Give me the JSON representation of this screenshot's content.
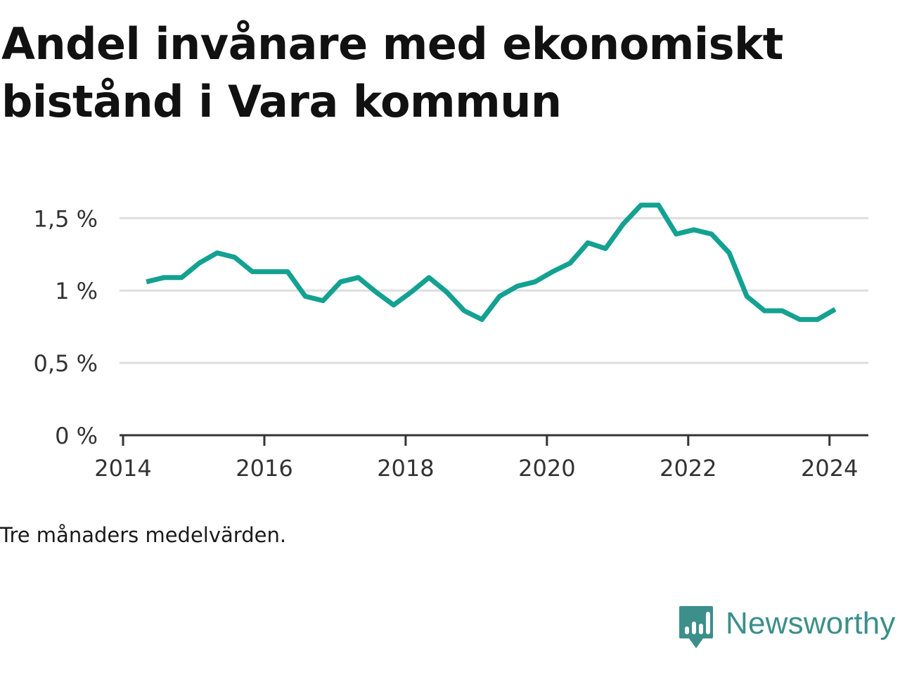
{
  "title": "Andel invånare med ekonomiskt bistånd i Vara kommun",
  "note": "Tre månaders medelvärden.",
  "brand": {
    "name": "Newsworthy",
    "icon": "bar-chart-speech-bubble-icon",
    "color": "#3c8f8a"
  },
  "chart_data": {
    "type": "line",
    "title": "Andel invånare med ekonomiskt bistånd i Vara kommun",
    "xlabel": "",
    "ylabel": "",
    "xlim": [
      2013.95,
      2024.55
    ],
    "ylim": [
      0,
      1.55
    ],
    "x_ticks": [
      2014,
      2016,
      2018,
      2020,
      2022,
      2024
    ],
    "x_tick_labels": [
      "2014",
      "2016",
      "2018",
      "2020",
      "2022",
      "2024"
    ],
    "y_ticks": [
      0,
      0.5,
      1,
      1.5
    ],
    "y_tick_labels": [
      "0 %",
      "0,5 %",
      "1 %",
      "1,5 %"
    ],
    "grid": true,
    "legend": "none",
    "series": [
      {
        "color": "#13a192",
        "points": [
          [
            2014.33,
            1.06
          ],
          [
            2014.58,
            1.09
          ],
          [
            2014.83,
            1.09
          ],
          [
            2015.08,
            1.19
          ],
          [
            2015.33,
            1.26
          ],
          [
            2015.58,
            1.23
          ],
          [
            2015.83,
            1.13
          ],
          [
            2016.08,
            1.13
          ],
          [
            2016.33,
            1.13
          ],
          [
            2016.58,
            0.96
          ],
          [
            2016.83,
            0.93
          ],
          [
            2017.08,
            1.06
          ],
          [
            2017.33,
            1.09
          ],
          [
            2017.58,
            0.99
          ],
          [
            2017.83,
            0.9
          ],
          [
            2018.08,
            0.99
          ],
          [
            2018.33,
            1.09
          ],
          [
            2018.58,
            0.99
          ],
          [
            2018.83,
            0.86
          ],
          [
            2019.08,
            0.8
          ],
          [
            2019.33,
            0.96
          ],
          [
            2019.58,
            1.03
          ],
          [
            2019.83,
            1.06
          ],
          [
            2020.08,
            1.13
          ],
          [
            2020.33,
            1.19
          ],
          [
            2020.58,
            1.33
          ],
          [
            2020.83,
            1.29
          ],
          [
            2021.08,
            1.46
          ],
          [
            2021.33,
            1.59
          ],
          [
            2021.58,
            1.59
          ],
          [
            2021.83,
            1.39
          ],
          [
            2022.08,
            1.42
          ],
          [
            2022.33,
            1.39
          ],
          [
            2022.58,
            1.26
          ],
          [
            2022.83,
            0.96
          ],
          [
            2023.08,
            0.86
          ],
          [
            2023.33,
            0.86
          ],
          [
            2023.58,
            0.8
          ],
          [
            2023.83,
            0.8
          ],
          [
            2024.08,
            0.87
          ]
        ]
      }
    ]
  }
}
